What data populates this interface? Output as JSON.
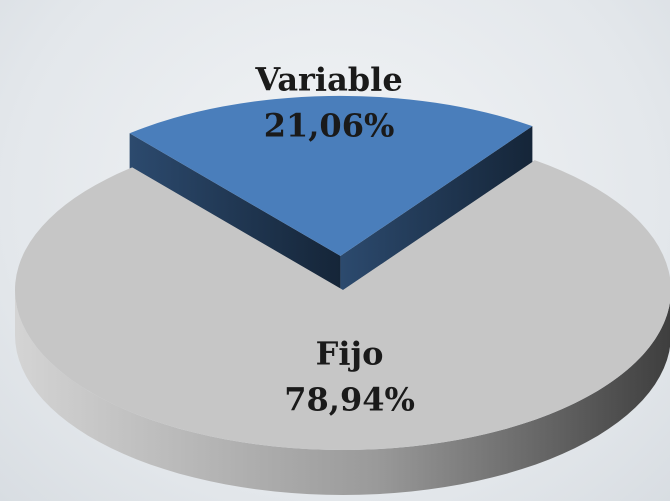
{
  "chart_data": {
    "type": "pie",
    "categories": [
      "Variable",
      "Fijo"
    ],
    "values": [
      21.06,
      78.94
    ],
    "value_labels": [
      "21,06%",
      "78,94%"
    ],
    "colors": [
      "#4a7ebb",
      "#c6c6c6"
    ],
    "exploded": [
      true,
      false
    ]
  }
}
